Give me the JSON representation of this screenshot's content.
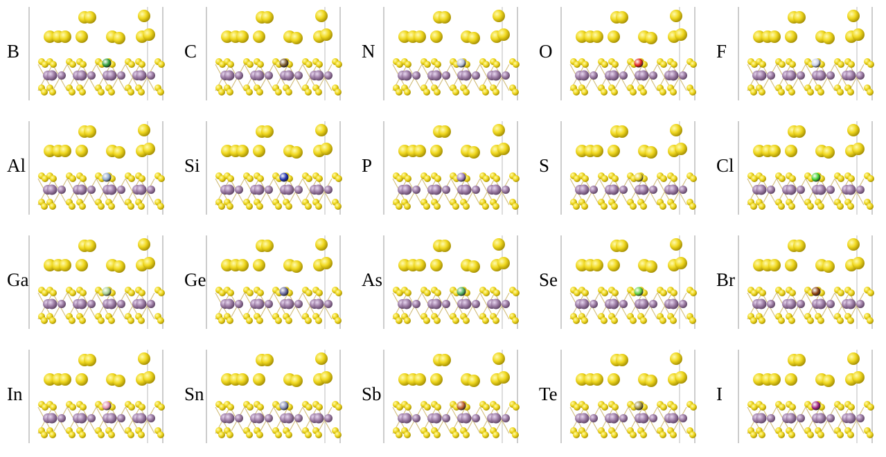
{
  "panels": [
    {
      "label": "B",
      "dopant_color": "#2f9e3a"
    },
    {
      "label": "C",
      "dopant_color": "#7a5a2a"
    },
    {
      "label": "N",
      "dopant_color": "#b8c0d8"
    },
    {
      "label": "O",
      "dopant_color": "#e0221a"
    },
    {
      "label": "F",
      "dopant_color": "#c8d0e8"
    },
    {
      "label": "Al",
      "dopant_color": "#90a8cc"
    },
    {
      "label": "Si",
      "dopant_color": "#2030b0"
    },
    {
      "label": "P",
      "dopant_color": "#a080c0"
    },
    {
      "label": "S",
      "dopant_color": "#e8d020"
    },
    {
      "label": "Cl",
      "dopant_color": "#40d030"
    },
    {
      "label": "Ga",
      "dopant_color": "#a8d090"
    },
    {
      "label": "Ge",
      "dopant_color": "#6a6aa0"
    },
    {
      "label": "As",
      "dopant_color": "#50b060"
    },
    {
      "label": "Se",
      "dopant_color": "#60d040"
    },
    {
      "label": "Br",
      "dopant_color": "#8a4010"
    },
    {
      "label": "In",
      "dopant_color": "#e090b0"
    },
    {
      "label": "Sn",
      "dopant_color": "#8890b8"
    },
    {
      "label": "Sb",
      "dopant_color": "#c06030"
    },
    {
      "label": "Te",
      "dopant_color": "#a09040"
    },
    {
      "label": "I",
      "dopant_color": "#a02080"
    }
  ]
}
